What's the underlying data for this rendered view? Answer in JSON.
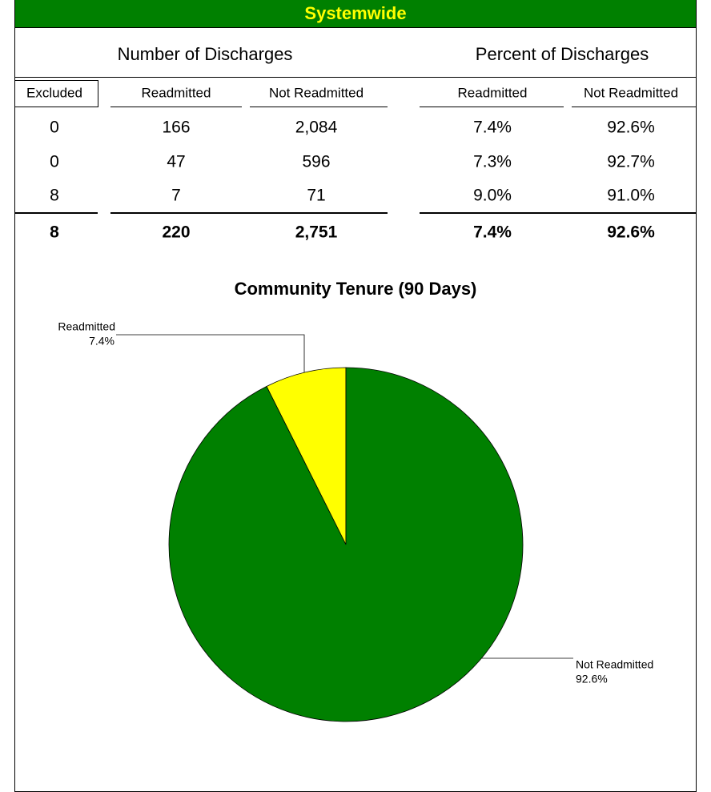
{
  "header": {
    "title": "Systemwide"
  },
  "table": {
    "groups": [
      "Number of Discharges",
      "Percent of Discharges"
    ],
    "columns": [
      "Excluded",
      "Readmitted",
      "Not Readmitted",
      "Readmitted",
      "Not Readmitted"
    ],
    "rows": [
      [
        "0",
        "166",
        "2,084",
        "7.4%",
        "92.6%"
      ],
      [
        "0",
        "47",
        "596",
        "7.3%",
        "92.7%"
      ],
      [
        "8",
        "7",
        "71",
        "9.0%",
        "91.0%"
      ]
    ],
    "total": [
      "8",
      "220",
      "2,751",
      "7.4%",
      "92.6%"
    ]
  },
  "chart_data": {
    "type": "pie",
    "title": "Community Tenure (90 Days)",
    "categories": [
      "Readmitted",
      "Not Readmitted"
    ],
    "values": [
      7.4,
      92.6
    ],
    "value_labels": [
      "7.4%",
      "92.6%"
    ],
    "colors": [
      "#ffff00",
      "#008000"
    ]
  }
}
